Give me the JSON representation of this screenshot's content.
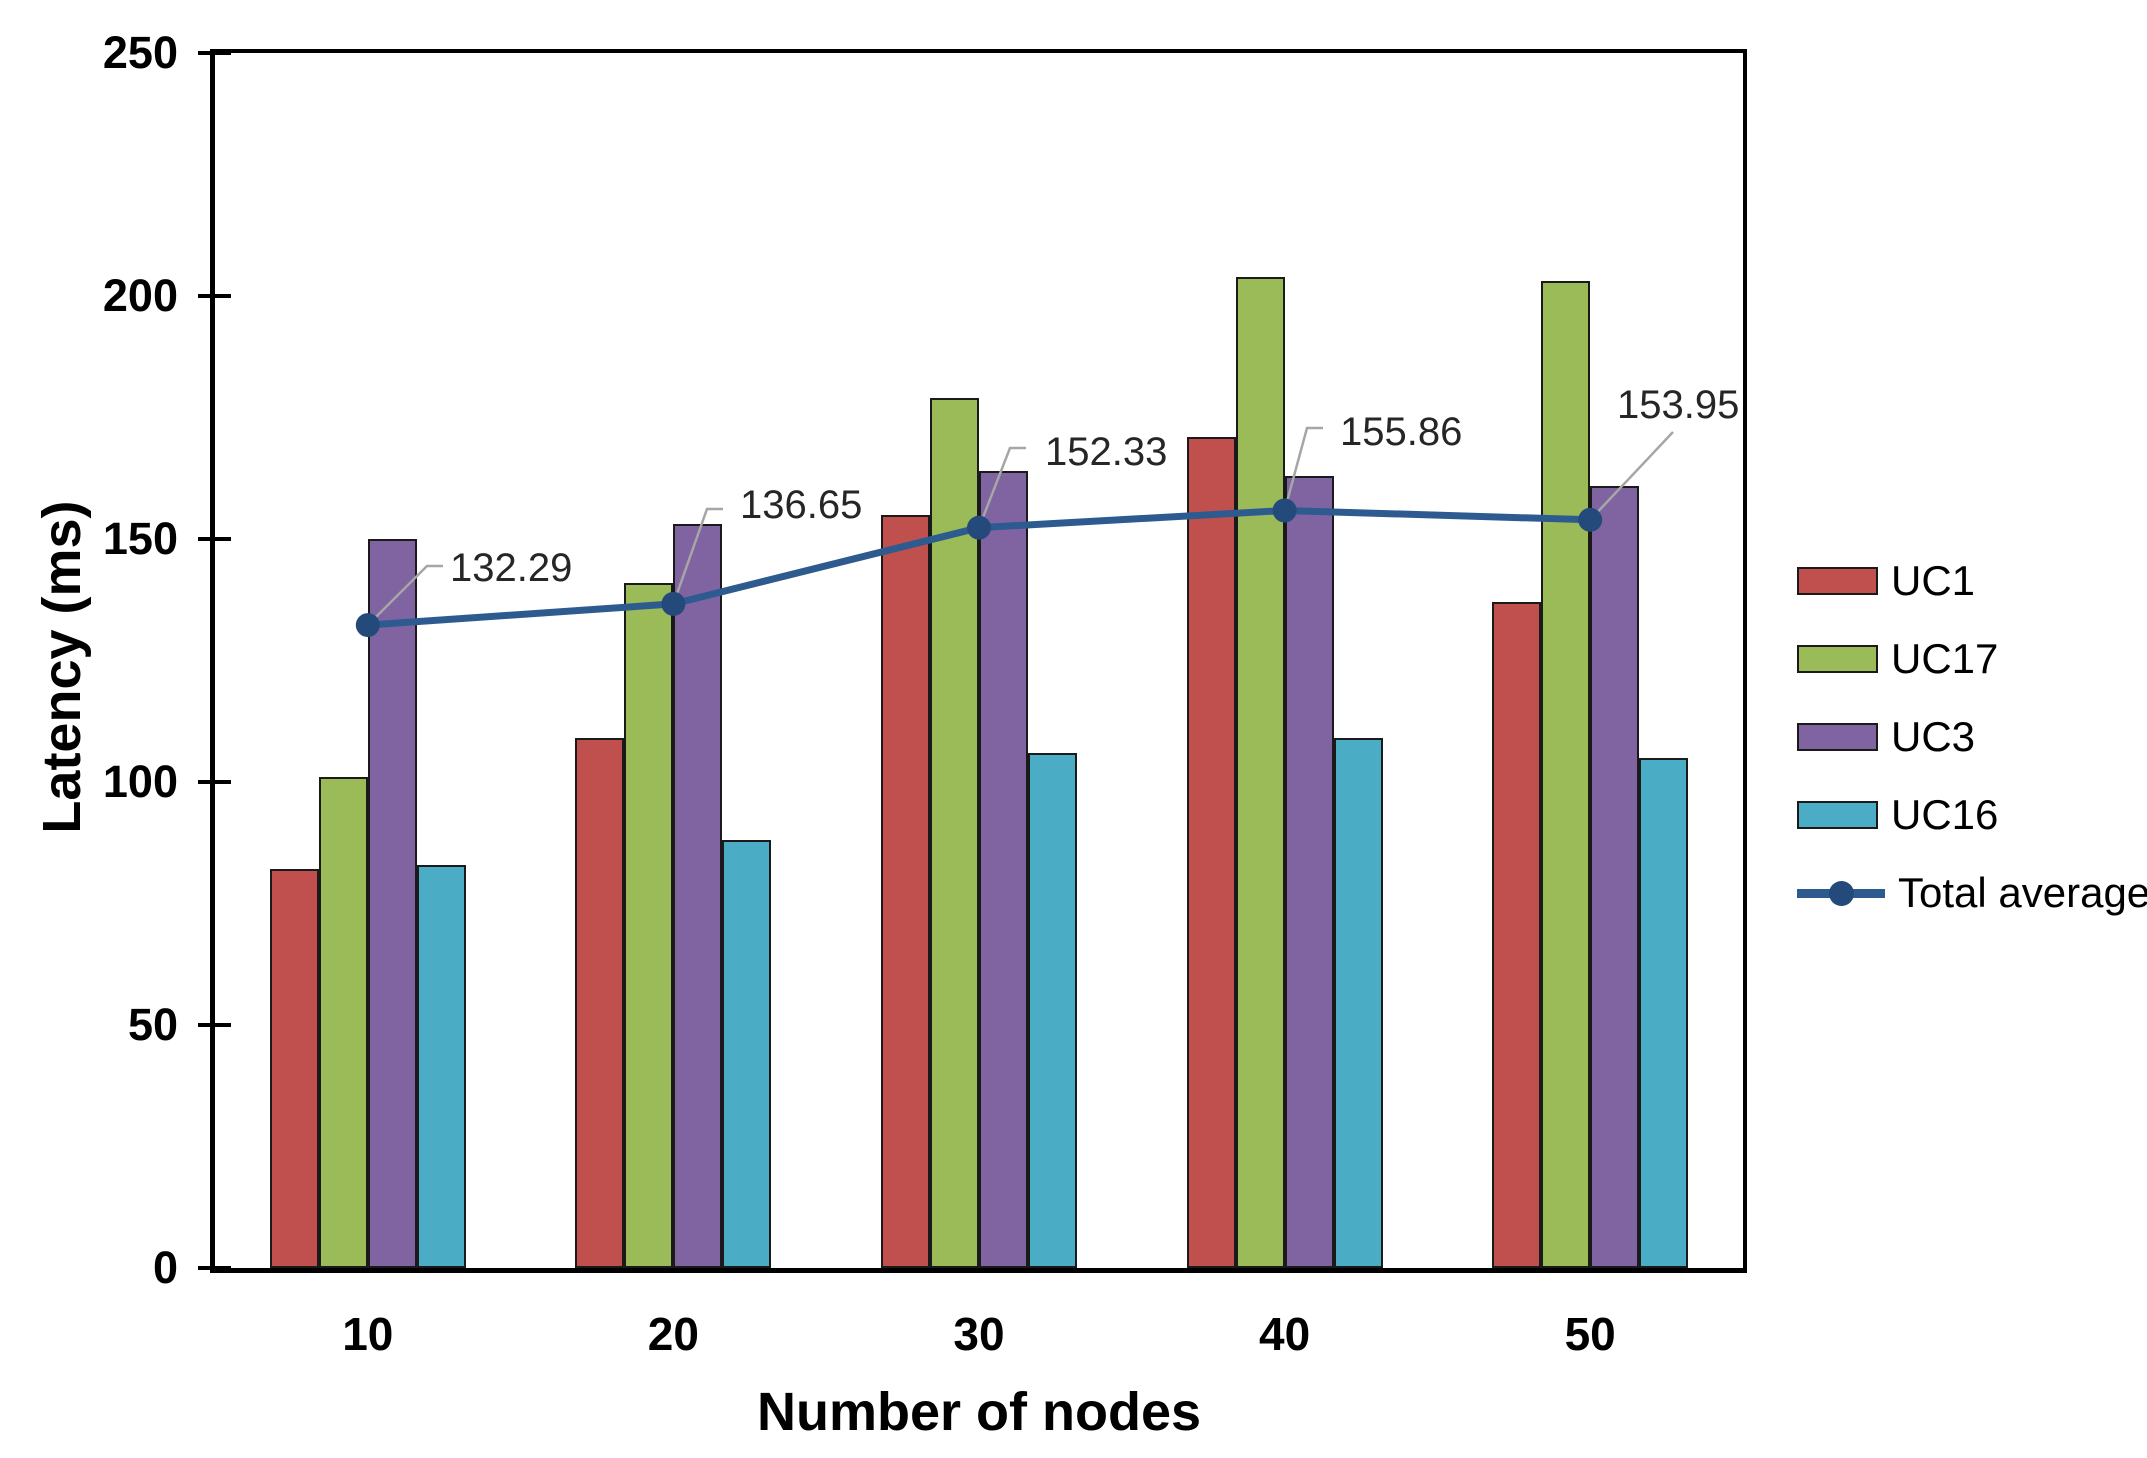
{
  "chart_data": {
    "type": "bar",
    "subtype": "grouped-bars-with-line-overlay",
    "title": "",
    "xlabel": "Number of nodes",
    "ylabel": "Latency (ms)",
    "categories": [
      "10",
      "20",
      "30",
      "40",
      "50"
    ],
    "y_ticks": [
      "0",
      "50",
      "100",
      "150",
      "200",
      "250"
    ],
    "ylim": [
      0,
      250
    ],
    "grid": false,
    "legend_position": "right",
    "bar_series": [
      {
        "name": "UC1",
        "color": "#C0504D",
        "values": [
          82,
          109,
          155,
          171,
          137
        ]
      },
      {
        "name": "UC17",
        "color": "#9BBB59",
        "values": [
          101,
          141,
          179,
          204,
          203
        ]
      },
      {
        "name": "UC3",
        "color": "#8064A2",
        "values": [
          150,
          153,
          164,
          163,
          161
        ]
      },
      {
        "name": "UC16",
        "color": "#4BACC6",
        "values": [
          83,
          88,
          106,
          109,
          105
        ]
      }
    ],
    "line_series": {
      "name": "Total average",
      "color": "#2E5B8F",
      "marker_color": "#24497B",
      "values": [
        132.29,
        136.65,
        152.33,
        155.86,
        153.95
      ],
      "labels": [
        "132.29",
        "136.65",
        "152.33",
        "155.86",
        "153.95"
      ]
    },
    "bar_border_color": "#1A1A1A",
    "leader_line_color": "#A6A6A6",
    "data_label_color": "#262626",
    "axis_color": "#000000"
  }
}
